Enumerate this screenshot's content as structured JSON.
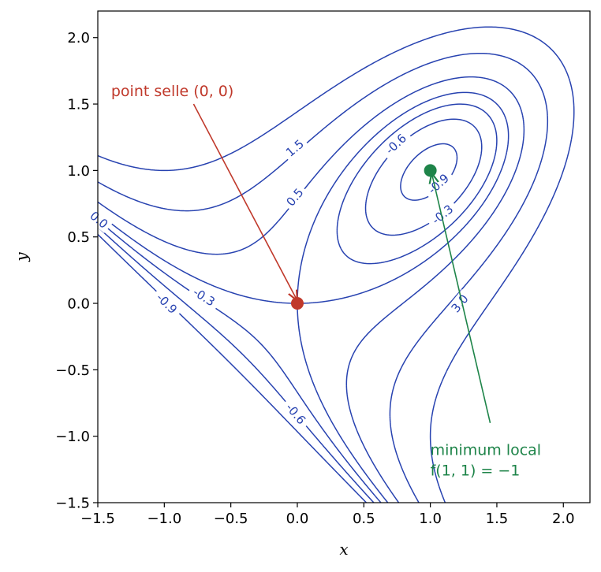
{
  "chart_data": {
    "type": "contour",
    "xlabel": "x",
    "ylabel": "y",
    "xlim": [
      -1.5,
      2.2
    ],
    "ylim": [
      -1.5,
      2.2
    ],
    "x_ticks": [
      -1.5,
      -1.0,
      -0.5,
      0.0,
      0.5,
      1.0,
      1.5,
      2.0
    ],
    "x_tick_labels": [
      "−1.5",
      "−1.0",
      "−0.5",
      "0.0",
      "0.5",
      "1.0",
      "1.5",
      "2.0"
    ],
    "y_ticks": [
      -1.5,
      -1.0,
      -0.5,
      0.0,
      0.5,
      1.0,
      1.5,
      2.0
    ],
    "y_tick_labels": [
      "−1.5",
      "−1.0",
      "−0.5",
      "0.0",
      "0.5",
      "1.0",
      "1.5",
      "2.0"
    ],
    "grid": false,
    "contour_color": "#2742b0",
    "negative_levels_dashed": true,
    "levels": [
      -0.9,
      -0.6,
      -0.3,
      0.0,
      0.5,
      1.5,
      3.0
    ],
    "labeled_levels": [
      {
        "text": "1.5",
        "x": -0.02,
        "y": 1.17
      },
      {
        "text": "0.5",
        "x": -0.02,
        "y": 0.8
      },
      {
        "text": "-0.6",
        "x": 0.74,
        "y": 1.2
      },
      {
        "text": "-0.9",
        "x": 1.06,
        "y": 0.9
      },
      {
        "text": "-0.3",
        "x": 1.09,
        "y": 0.67
      },
      {
        "text": "3.0",
        "x": 1.22,
        "y": 0.0
      },
      {
        "text": "0.0",
        "x": -1.49,
        "y": 0.63
      },
      {
        "text": "-0.3",
        "x": -0.7,
        "y": 0.05
      },
      {
        "text": "-0.9",
        "x": -0.98,
        "y": 0.0
      },
      {
        "text": "-0.6",
        "x": -0.01,
        "y": -0.83
      }
    ],
    "points": [
      {
        "name": "saddle",
        "x": 0,
        "y": 0,
        "color": "#c0392b"
      },
      {
        "name": "minimum",
        "x": 1,
        "y": 1,
        "color": "#1e8449"
      }
    ],
    "annotations": [
      {
        "text": "point selle (0, 0)",
        "x_text": -1.4,
        "y_text": 1.6,
        "x_arrow_from": -0.78,
        "y_arrow_from": 1.5,
        "x_arrow_to": 0.0,
        "y_arrow_to": 0.02,
        "color": "#c0392b"
      },
      {
        "lines": [
          "minimum local",
          "f(1, 1) = −1"
        ],
        "x_text": 1.0,
        "y_text": -1.1,
        "x_arrow_from": 1.45,
        "y_arrow_from": -0.9,
        "x_arrow_to": 1.01,
        "y_arrow_to": 0.98,
        "color": "#1e8449"
      }
    ]
  }
}
